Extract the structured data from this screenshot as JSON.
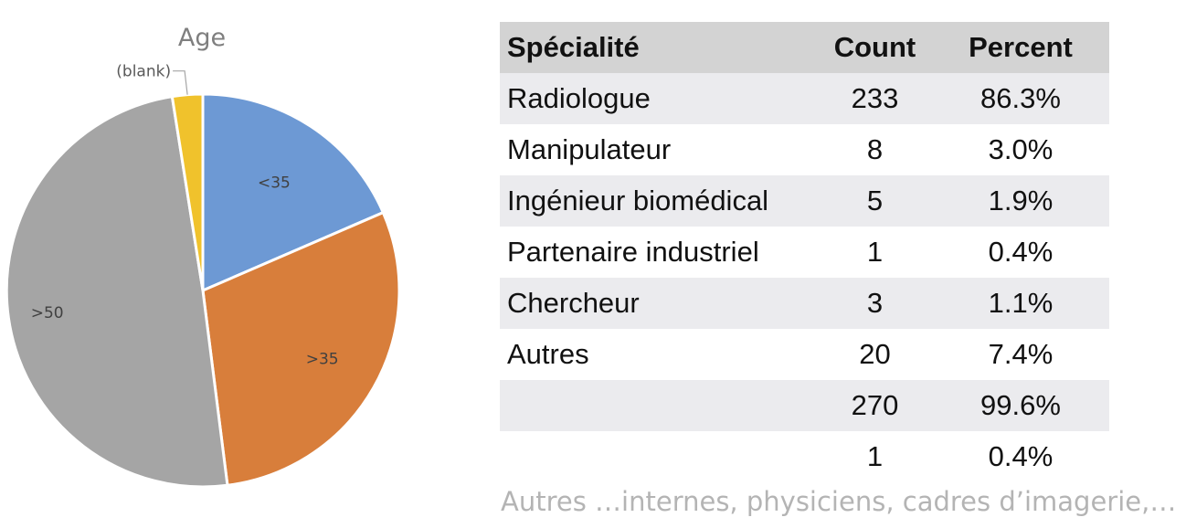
{
  "chart_data": {
    "type": "pie",
    "title": "Age",
    "slices": [
      {
        "label": "<35",
        "value": 18.5,
        "color": "#6d99d4"
      },
      {
        "label": ">35",
        "value": 29.5,
        "color": "#d87e3b"
      },
      {
        "label": ">50",
        "value": 49.5,
        "color": "#a5a5a5"
      },
      {
        "label": "(blank)",
        "value": 2.5,
        "color": "#f0c22c"
      }
    ]
  },
  "table": {
    "headers": [
      "Spécialité",
      "Count",
      "Percent"
    ],
    "rows": [
      {
        "specialite": "Radiologue",
        "count": "233",
        "percent": "86.3%"
      },
      {
        "specialite": "Manipulateur",
        "count": "8",
        "percent": "3.0%"
      },
      {
        "specialite": "Ingénieur biomédical",
        "count": "5",
        "percent": "1.9%"
      },
      {
        "specialite": "Partenaire industriel",
        "count": "1",
        "percent": "0.4%"
      },
      {
        "specialite": "Chercheur",
        "count": "3",
        "percent": "1.1%"
      },
      {
        "specialite": "Autres",
        "count": "20",
        "percent": "7.4%"
      },
      {
        "specialite": "",
        "count": "270",
        "percent": "99.6%"
      },
      {
        "specialite": "",
        "count": "1",
        "percent": "0.4%"
      }
    ]
  },
  "footnote": "Autres …internes, physiciens, cadres d’imagerie,…"
}
